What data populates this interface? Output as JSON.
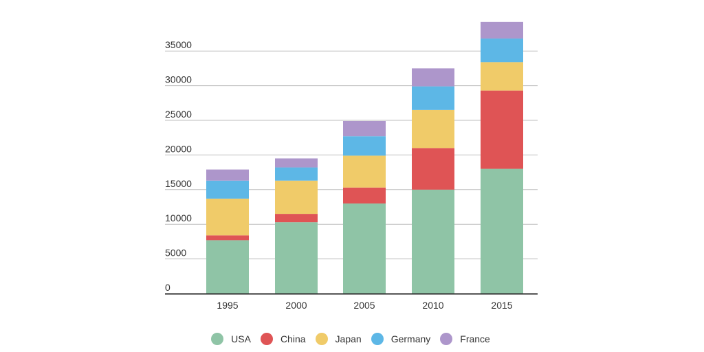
{
  "chart_data": {
    "type": "bar",
    "stacked": true,
    "title": "",
    "xlabel": "",
    "ylabel": "",
    "categories": [
      "1995",
      "2000",
      "2005",
      "2010",
      "2015"
    ],
    "y_ticks": [
      "0",
      "5000",
      "10000",
      "15000",
      "20000",
      "25000",
      "30000",
      "35000"
    ],
    "ylim": [
      0,
      39000
    ],
    "grid": true,
    "legend_position": "bottom-center",
    "series": [
      {
        "name": "USA",
        "color": "#8fc4a6",
        "values": [
          7700,
          10300,
          13000,
          15000,
          18000
        ]
      },
      {
        "name": "China",
        "color": "#df5455",
        "values": [
          700,
          1200,
          2300,
          6000,
          11300
        ]
      },
      {
        "name": "Japan",
        "color": "#f0cb69",
        "values": [
          5300,
          4800,
          4600,
          5500,
          4100
        ]
      },
      {
        "name": "Germany",
        "color": "#5db7e6",
        "values": [
          2600,
          1900,
          2800,
          3400,
          3400
        ]
      },
      {
        "name": "France",
        "color": "#ad96cb",
        "values": [
          1600,
          1300,
          2200,
          2600,
          2400
        ]
      }
    ]
  }
}
